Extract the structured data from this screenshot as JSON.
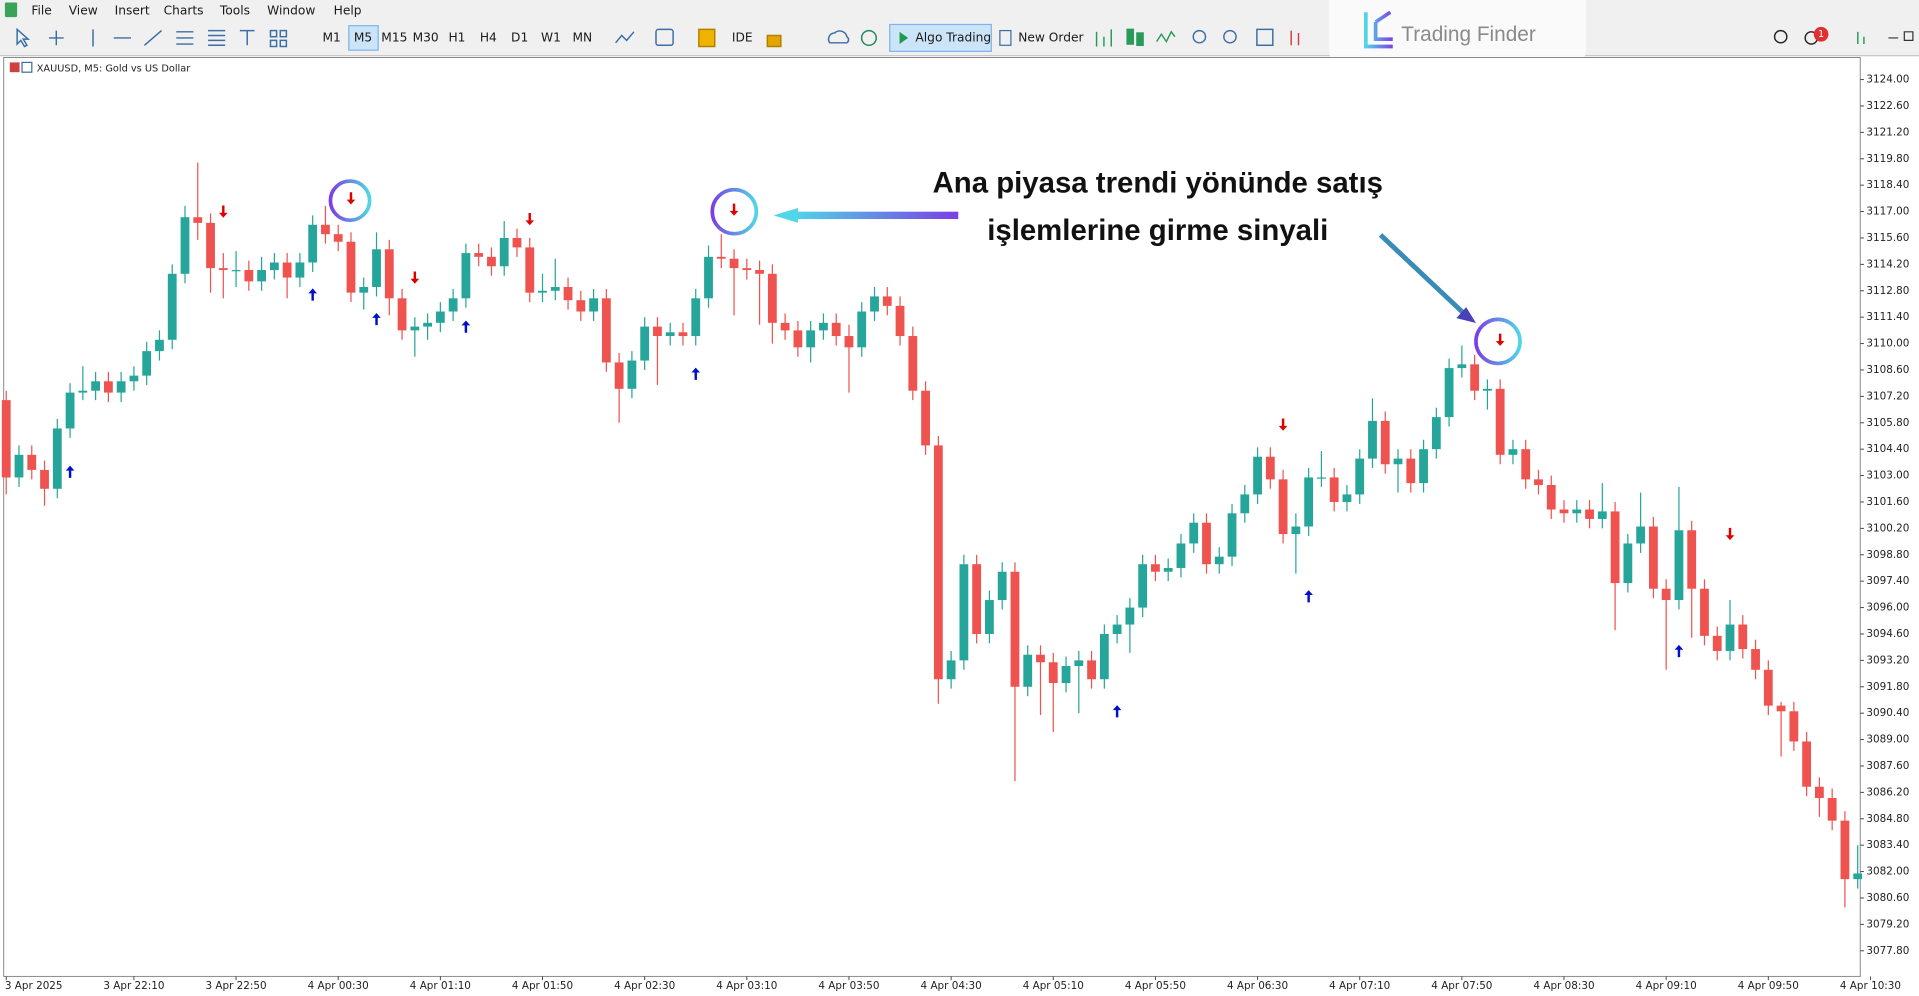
{
  "menu": [
    "File",
    "View",
    "Insert",
    "Charts",
    "Tools",
    "Window",
    "Help"
  ],
  "timeframes": [
    "M1",
    "M5",
    "M15",
    "M30",
    "H1",
    "H4",
    "D1",
    "W1",
    "MN"
  ],
  "toolbar": {
    "ide": "IDE",
    "algo": "Algo Trading",
    "order": "New Order",
    "badge": "1"
  },
  "logo": "Trading Finder",
  "chart_label": "XAUUSD, M5:  Gold vs US Dollar",
  "annotation": [
    "Ana piyasa trendi yönünde satış",
    "işlemlerine girme sinyali"
  ],
  "chart_data": {
    "type": "candlestick",
    "up_color": "#26a69a",
    "down_color": "#ef5350",
    "grid": false,
    "open": [
      3107.0,
      3102.9,
      3104.1,
      3103.3,
      3102.3,
      3105.5,
      3107.4,
      3107.5,
      3108.0,
      3107.4,
      3108.0,
      3108.3,
      3109.6,
      3110.2,
      3113.7,
      3116.7,
      3116.4,
      3114.0,
      3113.9,
      3113.9,
      3113.3,
      3113.9,
      3114.3,
      3113.5,
      3114.3,
      3116.3,
      3115.8,
      3115.4,
      3112.7,
      3113.0,
      3115.0,
      3112.4,
      3110.7,
      3110.9,
      3111.1,
      3111.7,
      3112.4,
      3114.8,
      3114.6,
      3114.1,
      3115.6,
      3115.1,
      3112.7,
      3112.8,
      3113.0,
      3112.3,
      3111.7,
      3112.4,
      3109.0,
      3107.6,
      3109.1,
      3110.9,
      3110.4,
      3110.6,
      3110.4,
      3112.4,
      3114.6,
      3114.5,
      3114.0,
      3113.9,
      3113.7,
      3111.1,
      3110.7,
      3109.8,
      3110.7,
      3111.1,
      3110.4,
      3109.8,
      3111.7,
      3112.5,
      3112.0,
      3110.4,
      3107.5,
      3104.6,
      3092.2,
      3093.2,
      3098.3,
      3094.6,
      3096.4,
      3097.9,
      3091.8,
      3093.5,
      3093.1,
      3092.0,
      3092.9,
      3093.2,
      3092.2,
      3094.6,
      3095.1,
      3096.0,
      3098.3,
      3097.9,
      3098.1,
      3099.4,
      3100.5,
      3098.3,
      3098.7,
      3101.0,
      3102.0,
      3104.0,
      3102.8,
      3099.9,
      3100.3,
      3102.9,
      3102.9,
      3101.6,
      3102.0,
      3103.9,
      3105.9,
      3103.6,
      3103.9,
      3102.6,
      3104.4,
      3106.1,
      3108.7,
      3108.9,
      3107.5,
      3107.6,
      3104.1,
      3104.4,
      3102.8,
      3102.5,
      3101.2,
      3101.0,
      3101.2,
      3100.7,
      3101.1,
      3097.3,
      3099.4,
      3100.3,
      3097.0,
      3096.4,
      3100.1,
      3097.0,
      3094.5,
      3093.7,
      3095.1,
      3093.8,
      3092.7,
      3090.8,
      3090.5,
      3088.9,
      3086.5,
      3085.9,
      3084.7,
      3081.6
    ],
    "high": [
      3107.5,
      3104.6,
      3104.6,
      3103.8,
      3106.0,
      3107.9,
      3108.8,
      3108.5,
      3108.5,
      3108.5,
      3108.8,
      3110.1,
      3110.7,
      3114.2,
      3117.3,
      3119.6,
      3116.9,
      3114.8,
      3114.9,
      3114.4,
      3114.6,
      3114.8,
      3114.8,
      3114.8,
      3116.8,
      3117.3,
      3116.3,
      3115.9,
      3113.5,
      3115.9,
      3115.5,
      3112.9,
      3111.4,
      3111.6,
      3112.2,
      3112.9,
      3115.3,
      3115.3,
      3115.1,
      3116.5,
      3116.1,
      3115.6,
      3113.7,
      3114.5,
      3113.5,
      3112.8,
      3112.9,
      3112.9,
      3109.5,
      3109.6,
      3111.4,
      3111.4,
      3111.1,
      3111.1,
      3112.9,
      3115.2,
      3115.8,
      3115.0,
      3114.5,
      3114.4,
      3114.2,
      3111.6,
      3111.2,
      3111.2,
      3111.6,
      3111.6,
      3111.0,
      3112.2,
      3113.0,
      3113.0,
      3112.5,
      3110.9,
      3108.0,
      3105.1,
      3093.7,
      3098.8,
      3098.8,
      3096.9,
      3098.4,
      3098.4,
      3094.0,
      3094.0,
      3093.6,
      3093.4,
      3093.7,
      3093.7,
      3095.1,
      3095.6,
      3096.5,
      3098.8,
      3098.8,
      3098.6,
      3099.9,
      3101.0,
      3101.0,
      3099.2,
      3101.5,
      3102.5,
      3104.5,
      3104.5,
      3103.3,
      3101.0,
      3103.4,
      3104.3,
      3103.4,
      3102.5,
      3104.4,
      3107.1,
      3106.4,
      3104.4,
      3104.4,
      3104.9,
      3106.6,
      3109.2,
      3109.9,
      3109.4,
      3108.1,
      3108.1,
      3104.9,
      3104.9,
      3103.3,
      3103.0,
      3101.7,
      3101.7,
      3101.7,
      3102.6,
      3101.6,
      3099.9,
      3102.1,
      3100.8,
      3097.5,
      3102.4,
      3100.6,
      3097.5,
      3095.0,
      3096.4,
      3095.6,
      3094.3,
      3093.2,
      3091.0,
      3091.0,
      3089.4,
      3087.0,
      3086.4,
      3085.2,
      3083.4
    ],
    "low": [
      3102.0,
      3102.4,
      3102.8,
      3101.4,
      3101.8,
      3105.0,
      3107.0,
      3107.0,
      3106.9,
      3106.9,
      3107.5,
      3107.8,
      3109.1,
      3109.7,
      3113.2,
      3115.5,
      3112.7,
      3112.4,
      3113.0,
      3112.8,
      3112.8,
      3113.4,
      3112.4,
      3113.0,
      3113.8,
      3115.3,
      3114.9,
      3112.2,
      3111.8,
      3112.5,
      3111.5,
      3110.2,
      3109.3,
      3110.2,
      3110.6,
      3111.2,
      3111.9,
      3114.1,
      3113.6,
      3113.6,
      3114.6,
      3112.2,
      3112.2,
      3112.3,
      3111.8,
      3111.2,
      3111.2,
      3108.5,
      3105.8,
      3107.1,
      3108.6,
      3107.8,
      3109.9,
      3109.9,
      3109.9,
      3111.9,
      3114.0,
      3111.5,
      3113.4,
      3111.0,
      3110.0,
      3110.2,
      3109.3,
      3109.0,
      3110.2,
      3109.9,
      3107.4,
      3109.3,
      3111.2,
      3111.5,
      3109.9,
      3107.0,
      3104.1,
      3090.9,
      3091.7,
      3092.7,
      3094.1,
      3094.1,
      3095.9,
      3086.8,
      3091.3,
      3090.3,
      3089.4,
      3091.5,
      3090.4,
      3091.7,
      3091.7,
      3094.1,
      3093.6,
      3095.5,
      3097.4,
      3097.4,
      3097.6,
      3098.9,
      3097.8,
      3097.8,
      3098.2,
      3100.5,
      3101.5,
      3102.3,
      3099.4,
      3097.8,
      3099.8,
      3102.4,
      3101.1,
      3101.1,
      3101.5,
      3103.4,
      3103.1,
      3102.1,
      3102.1,
      3102.1,
      3103.9,
      3105.6,
      3108.2,
      3107.0,
      3106.5,
      3103.6,
      3103.6,
      3102.3,
      3102.0,
      3100.7,
      3100.5,
      3100.5,
      3100.2,
      3100.2,
      3094.8,
      3096.8,
      3098.9,
      3096.5,
      3092.7,
      3095.9,
      3094.4,
      3094.0,
      3093.2,
      3093.2,
      3093.3,
      3092.2,
      3090.3,
      3088.1,
      3088.4,
      3086.0,
      3084.9,
      3084.2,
      3080.1,
      3081.1
    ],
    "close": [
      3102.9,
      3104.1,
      3103.3,
      3102.3,
      3105.5,
      3107.4,
      3107.5,
      3108.0,
      3107.4,
      3108.0,
      3108.3,
      3109.6,
      3110.2,
      3113.7,
      3116.7,
      3116.4,
      3114.0,
      3113.9,
      3113.9,
      3113.3,
      3113.9,
      3114.3,
      3113.5,
      3114.3,
      3116.3,
      3115.8,
      3115.4,
      3112.7,
      3113.0,
      3115.0,
      3112.4,
      3110.7,
      3110.9,
      3111.1,
      3111.7,
      3112.4,
      3114.8,
      3114.6,
      3114.1,
      3115.6,
      3115.1,
      3112.7,
      3112.8,
      3113.0,
      3112.3,
      3111.7,
      3112.4,
      3109.0,
      3107.6,
      3109.1,
      3110.9,
      3110.4,
      3110.6,
      3110.4,
      3112.4,
      3114.6,
      3114.5,
      3114.0,
      3113.9,
      3113.7,
      3111.1,
      3110.7,
      3109.8,
      3110.7,
      3111.1,
      3110.4,
      3109.8,
      3111.7,
      3112.5,
      3112.0,
      3110.4,
      3107.5,
      3104.6,
      3092.2,
      3093.2,
      3098.3,
      3094.6,
      3096.4,
      3097.9,
      3091.8,
      3093.5,
      3093.1,
      3092.0,
      3092.9,
      3093.2,
      3092.2,
      3094.6,
      3095.1,
      3096.0,
      3098.3,
      3097.9,
      3098.1,
      3099.4,
      3100.5,
      3098.3,
      3098.7,
      3101.0,
      3102.0,
      3104.0,
      3102.8,
      3099.9,
      3100.3,
      3102.9,
      3102.9,
      3101.6,
      3102.0,
      3103.9,
      3105.9,
      3103.6,
      3103.9,
      3102.6,
      3104.4,
      3106.1,
      3108.7,
      3108.9,
      3107.5,
      3107.6,
      3104.1,
      3104.4,
      3102.8,
      3102.5,
      3101.2,
      3101.0,
      3101.2,
      3100.7,
      3101.1,
      3097.3,
      3099.4,
      3100.3,
      3097.0,
      3096.4,
      3100.1,
      3097.0,
      3094.5,
      3093.7,
      3095.1,
      3093.8,
      3092.7,
      3090.8,
      3090.5,
      3088.9,
      3086.5,
      3085.9,
      3084.7,
      3081.6,
      3081.9
    ],
    "sell_signals": {
      "color": "#e00000",
      "index": [
        17,
        27,
        32,
        41,
        57,
        100,
        117,
        135
      ],
      "price": [
        3117.0,
        3117.7,
        3113.5,
        3116.6,
        3117.1,
        3105.7,
        3110.2,
        3099.9
      ]
    },
    "buy_signals": {
      "color": "#0010c8",
      "index": [
        5,
        24,
        29,
        36,
        54,
        87,
        102,
        131
      ],
      "price": [
        3103.2,
        3112.6,
        3111.3,
        3110.9,
        3108.4,
        3090.5,
        3096.6,
        3093.7
      ]
    },
    "xlim": [
      -0.2,
      145.2
    ],
    "xticks": [
      {
        "value": 0,
        "label": "3 Apr 2025"
      },
      {
        "value": 10,
        "label": "3 Apr 22:10"
      },
      {
        "value": 18,
        "label": "3 Apr 22:50"
      },
      {
        "value": 26,
        "label": "4 Apr 00:30"
      },
      {
        "value": 34,
        "label": "4 Apr 01:10"
      },
      {
        "value": 42,
        "label": "4 Apr 01:50"
      },
      {
        "value": 50,
        "label": "4 Apr 02:30"
      },
      {
        "value": 58,
        "label": "4 Apr 03:10"
      },
      {
        "value": 66,
        "label": "4 Apr 03:50"
      },
      {
        "value": 74,
        "label": "4 Apr 04:30"
      },
      {
        "value": 82,
        "label": "4 Apr 05:10"
      },
      {
        "value": 90,
        "label": "4 Apr 05:50"
      },
      {
        "value": 98,
        "label": "4 Apr 06:30"
      },
      {
        "value": 106,
        "label": "4 Apr 07:10"
      },
      {
        "value": 114,
        "label": "4 Apr 07:50"
      },
      {
        "value": 122,
        "label": "4 Apr 08:30"
      },
      {
        "value": 130,
        "label": "4 Apr 09:10"
      },
      {
        "value": 138,
        "label": "4 Apr 09:50"
      },
      {
        "value": 146,
        "label": "4 Apr 10:30"
      }
    ],
    "ylim": [
      3076.44,
      3125.17
    ],
    "yticks": [
      {
        "value": 3124.0,
        "label": "3124.00"
      },
      {
        "value": 3122.6,
        "label": "3122.60"
      },
      {
        "value": 3121.2,
        "label": "3121.20"
      },
      {
        "value": 3119.8,
        "label": "3119.80"
      },
      {
        "value": 3118.4,
        "label": "3118.40"
      },
      {
        "value": 3117.0,
        "label": "3117.00"
      },
      {
        "value": 3115.6,
        "label": "3115.60"
      },
      {
        "value": 3114.2,
        "label": "3114.20"
      },
      {
        "value": 3112.8,
        "label": "3112.80"
      },
      {
        "value": 3111.4,
        "label": "3111.40"
      },
      {
        "value": 3110.0,
        "label": "3110.00"
      },
      {
        "value": 3108.6,
        "label": "3108.60"
      },
      {
        "value": 3107.2,
        "label": "3107.20"
      },
      {
        "value": 3105.8,
        "label": "3105.80"
      },
      {
        "value": 3104.4,
        "label": "3104.40"
      },
      {
        "value": 3103.0,
        "label": "3103.00"
      },
      {
        "value": 3101.6,
        "label": "3101.60"
      },
      {
        "value": 3100.2,
        "label": "3100.20"
      },
      {
        "value": 3098.8,
        "label": "3098.80"
      },
      {
        "value": 3097.4,
        "label": "3097.40"
      },
      {
        "value": 3096.0,
        "label": "3096.00"
      },
      {
        "value": 3094.6,
        "label": "3094.60"
      },
      {
        "value": 3093.2,
        "label": "3093.20"
      },
      {
        "value": 3091.8,
        "label": "3091.80"
      },
      {
        "value": 3090.4,
        "label": "3090.40"
      },
      {
        "value": 3089.0,
        "label": "3089.00"
      },
      {
        "value": 3087.6,
        "label": "3087.60"
      },
      {
        "value": 3086.2,
        "label": "3086.20"
      },
      {
        "value": 3084.8,
        "label": "3084.80"
      },
      {
        "value": 3083.4,
        "label": "3083.40"
      },
      {
        "value": 3082.0,
        "label": "3082.00"
      },
      {
        "value": 3080.6,
        "label": "3080.60"
      },
      {
        "value": 3079.2,
        "label": "3079.20"
      },
      {
        "value": 3077.8,
        "label": "3077.80"
      }
    ]
  }
}
